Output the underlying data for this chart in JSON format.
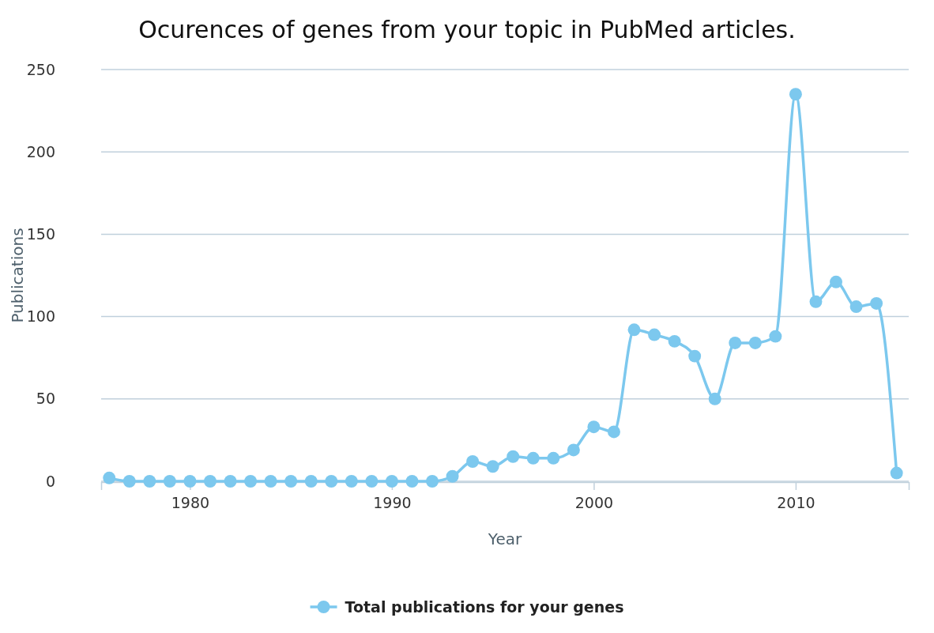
{
  "chart_data": {
    "type": "line",
    "title": "Ocurences of genes from your topic in PubMed articles.",
    "xlabel": "Year",
    "ylabel": "Publications",
    "x": [
      1976,
      1977,
      1978,
      1979,
      1980,
      1981,
      1982,
      1983,
      1984,
      1985,
      1986,
      1987,
      1988,
      1989,
      1990,
      1991,
      1992,
      1993,
      1994,
      1995,
      1996,
      1997,
      1998,
      1999,
      2000,
      2001,
      2002,
      2003,
      2004,
      2005,
      2006,
      2007,
      2008,
      2009,
      2010,
      2011,
      2012,
      2013,
      2014,
      2015
    ],
    "series": [
      {
        "name": "Total publications for your genes",
        "color": "#7cc8ee",
        "values": [
          2,
          0,
          0,
          0,
          0,
          0,
          0,
          0,
          0,
          0,
          0,
          0,
          0,
          0,
          0,
          0,
          0,
          3,
          12,
          9,
          15,
          14,
          14,
          19,
          33,
          30,
          92,
          89,
          85,
          76,
          50,
          84,
          84,
          88,
          235,
          109,
          121,
          106,
          108,
          5
        ]
      }
    ],
    "xlim": [
      1975.6,
      2015.6
    ],
    "xticks": [
      1980,
      1990,
      2000,
      2010
    ],
    "ylim": [
      0,
      250
    ],
    "yticks": [
      0,
      50,
      100,
      150,
      200,
      250
    ],
    "grid": "y",
    "legend": "bottom",
    "marker": "circle",
    "line_style": "solid"
  }
}
